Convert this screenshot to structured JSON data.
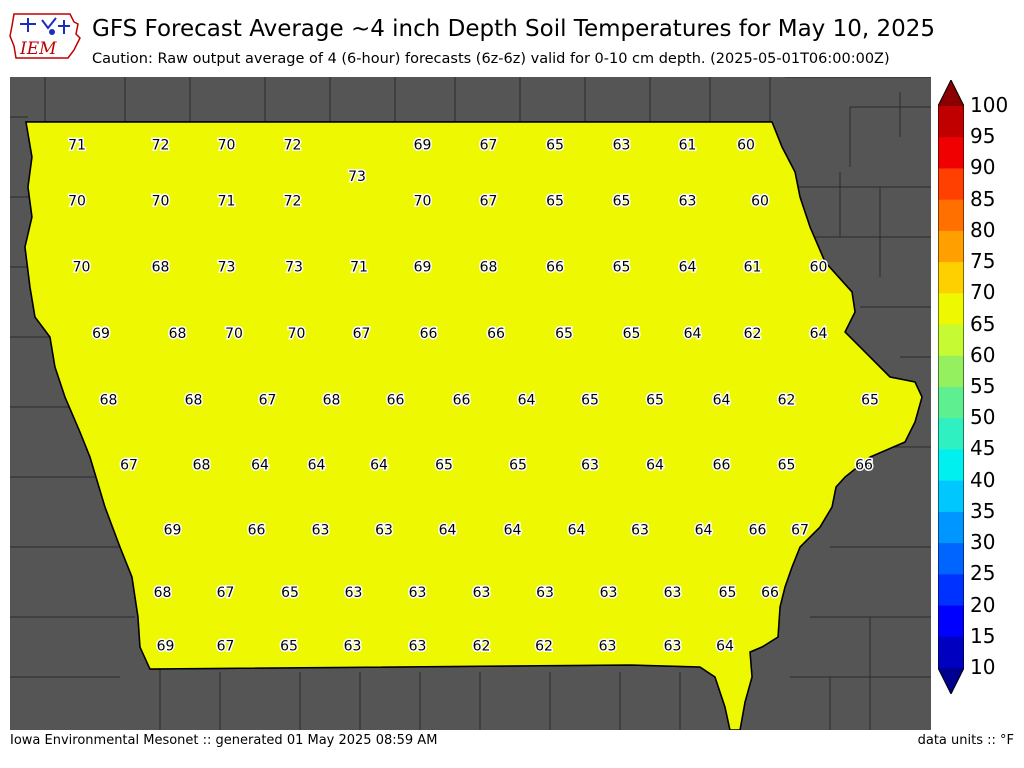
{
  "header": {
    "logo_text": "IEM",
    "title": "GFS Forecast Average ~4 inch Depth Soil Temperatures for May 10, 2025",
    "subtitle": "Caution: Raw output average of 4 (6-hour) forecasts (6z-6z) valid for 0-10 cm depth. (2025-05-01T06:00:00Z)"
  },
  "footer": {
    "left": "Iowa Environmental Mesonet :: generated 01 May 2025 08:59 AM",
    "right": "data units :: °F"
  },
  "legend": {
    "ticks": [
      100,
      95,
      90,
      85,
      80,
      75,
      70,
      65,
      60,
      55,
      50,
      45,
      40,
      35,
      30,
      25,
      20,
      15,
      10
    ],
    "colors": [
      "#8b0000",
      "#c00000",
      "#f00000",
      "#ff4000",
      "#ff7000",
      "#ffa000",
      "#ffd000",
      "#eef800",
      "#c6fa33",
      "#95f060",
      "#5ef090",
      "#2ff0c0",
      "#00f0f0",
      "#00c8ff",
      "#0096ff",
      "#0064ff",
      "#0032ff",
      "#0000ff",
      "#0000c0",
      "#000090"
    ]
  },
  "map": {
    "background_color": "#555555",
    "state_outline_color": "#000000",
    "county_grid": {
      "rows": [
        {
          "labels": [
            "71",
            "72",
            "70",
            "72",
            "73",
            "69",
            "67",
            "65",
            "63",
            "61",
            "60"
          ]
        },
        {
          "labels": [
            "70",
            "70",
            "71",
            "72",
            "",
            "70",
            "67",
            "65",
            "65",
            "63",
            "60"
          ]
        },
        {
          "labels": [
            "70",
            "68",
            "73",
            "73",
            "71",
            "69",
            "68",
            "66",
            "65",
            "64",
            "61",
            "60"
          ]
        },
        {
          "labels": [
            "69",
            "68",
            "70",
            "70",
            "67",
            "66",
            "66",
            "65",
            "65",
            "64",
            "62",
            "64"
          ]
        },
        {
          "labels": [
            "68",
            "68",
            "67",
            "68",
            "66",
            "66",
            "64",
            "65",
            "65",
            "64",
            "62",
            "65"
          ]
        },
        {
          "labels": [
            "67",
            "68",
            "64",
            "64",
            "64",
            "65",
            "65",
            "63",
            "64",
            "66",
            "65",
            "66"
          ]
        },
        {
          "labels": [
            "69",
            "66",
            "63",
            "63",
            "64",
            "64",
            "64",
            "63",
            "64",
            "66",
            "67"
          ]
        },
        {
          "labels": [
            "68",
            "67",
            "65",
            "63",
            "63",
            "63",
            "63",
            "63",
            "63",
            "65",
            "66"
          ]
        },
        {
          "labels": [
            "69",
            "67",
            "65",
            "63",
            "63",
            "62",
            "62",
            "63",
            "63",
            "64"
          ]
        }
      ]
    },
    "county_values": [
      {
        "v": 71
      },
      {
        "v": 72
      },
      {
        "v": 70
      },
      {
        "v": 72
      },
      {
        "v": 73
      },
      {
        "v": 69
      },
      {
        "v": 67
      },
      {
        "v": 65
      },
      {
        "v": 63
      },
      {
        "v": 61
      },
      {
        "v": 60
      },
      {
        "v": 70
      },
      {
        "v": 70
      },
      {
        "v": 71
      },
      {
        "v": 72
      },
      {
        "v": 70
      },
      {
        "v": 67
      },
      {
        "v": 65
      },
      {
        "v": 65
      },
      {
        "v": 63
      },
      {
        "v": 60
      },
      {
        "v": 70
      },
      {
        "v": 68
      },
      {
        "v": 73
      },
      {
        "v": 73
      },
      {
        "v": 71
      },
      {
        "v": 69
      },
      {
        "v": 68
      },
      {
        "v": 66
      },
      {
        "v": 65
      },
      {
        "v": 69
      },
      {
        "v": 68
      },
      {
        "v": 70
      },
      {
        "v": 70
      },
      {
        "v": 67
      },
      {
        "v": 66
      },
      {
        "v": 66
      },
      {
        "v": 65
      },
      {
        "v": 65
      },
      {
        "v": 64
      },
      {
        "v": 61
      },
      {
        "v": 60
      },
      {
        "v": 68
      },
      {
        "v": 68
      },
      {
        "v": 67
      },
      {
        "v": 68
      },
      {
        "v": 66
      },
      {
        "v": 66
      },
      {
        "v": 64
      },
      {
        "v": 65
      },
      {
        "v": 65
      },
      {
        "v": 64
      },
      {
        "v": 62
      },
      {
        "v": 64
      },
      {
        "v": 67
      },
      {
        "v": 68
      },
      {
        "v": 64
      },
      {
        "v": 64
      },
      {
        "v": 64
      },
      {
        "v": 65
      },
      {
        "v": 65
      },
      {
        "v": 63
      },
      {
        "v": 64
      },
      {
        "v": 66
      },
      {
        "v": 65
      },
      {
        "v": 65
      },
      {
        "v": 69
      },
      {
        "v": 66
      },
      {
        "v": 63
      },
      {
        "v": 63
      },
      {
        "v": 64
      },
      {
        "v": 64
      },
      {
        "v": 64
      },
      {
        "v": 63
      },
      {
        "v": 64
      },
      {
        "v": 66
      },
      {
        "v": 66
      },
      {
        "v": 68
      },
      {
        "v": 67
      },
      {
        "v": 65
      },
      {
        "v": 63
      },
      {
        "v": 63
      },
      {
        "v": 63
      },
      {
        "v": 63
      },
      {
        "v": 63
      },
      {
        "v": 63
      },
      {
        "v": 65
      },
      {
        "v": 67
      },
      {
        "v": 69
      },
      {
        "v": 67
      },
      {
        "v": 65
      },
      {
        "v": 63
      },
      {
        "v": 63
      },
      {
        "v": 62
      },
      {
        "v": 62
      },
      {
        "v": 63
      },
      {
        "v": 63
      },
      {
        "v": 64
      },
      {
        "v": 66
      }
    ]
  }
}
